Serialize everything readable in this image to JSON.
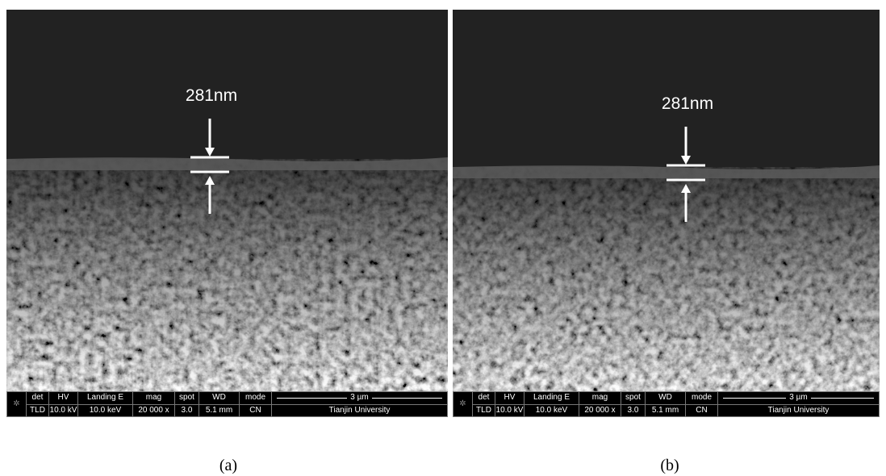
{
  "panels": [
    {
      "annotation": "281nm",
      "info_bar": {
        "labels": [
          "det",
          "HV",
          "Landing E",
          "mag",
          "spot",
          "WD",
          "mode"
        ],
        "values": [
          "TLD",
          "10.0 kV",
          "10.0 keV",
          "20 000 x",
          "3.0",
          "5.1 mm",
          "CN"
        ],
        "scale": "3 µm",
        "institution": "Tianjin University"
      },
      "caption": "(a)"
    },
    {
      "annotation": "281nm",
      "info_bar": {
        "labels": [
          "det",
          "HV",
          "Landing E",
          "mag",
          "spot",
          "WD",
          "mode"
        ],
        "values": [
          "TLD",
          "10.0 kV",
          "10.0 keV",
          "20 000 x",
          "3.0",
          "5.1 mm",
          "CN"
        ],
        "scale": "3 µm",
        "institution": "Tianjin University"
      },
      "caption": "(b)"
    }
  ]
}
